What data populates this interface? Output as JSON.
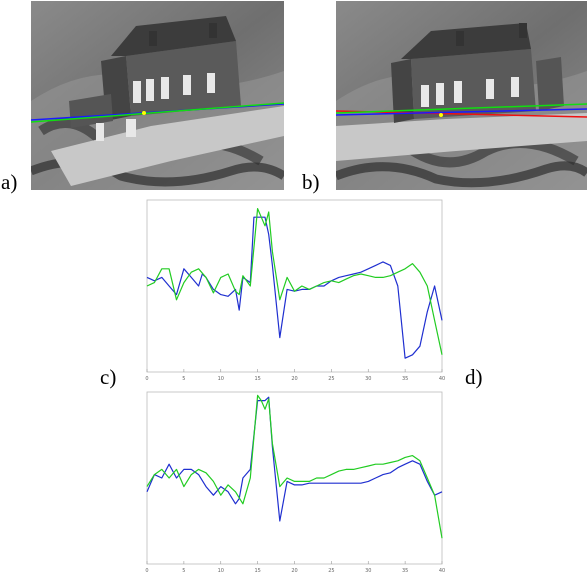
{
  "figure": {
    "panels": [
      {
        "id": "a",
        "label": "a)",
        "kind": "photo"
      },
      {
        "id": "b",
        "label": "b)",
        "kind": "photo"
      },
      {
        "id": "c",
        "label": "c)",
        "kind": "plot"
      },
      {
        "id": "d",
        "label": "d)",
        "kind": "plot"
      }
    ],
    "colors": {
      "series1": "#1f2fd0",
      "series2": "#22cc22",
      "epipolar_green": "#11dd11",
      "epipolar_blue": "#1a1aff",
      "epipolar_red": "#ee1111"
    }
  },
  "chart_data": [
    {
      "type": "line",
      "title": "",
      "xlabel": "",
      "ylabel": "",
      "xlim": [
        0,
        40
      ],
      "ylim": [
        0,
        1
      ],
      "xticks": [
        "0",
        "5",
        "10",
        "15",
        "20",
        "25",
        "30",
        "35",
        "40"
      ],
      "grid": false,
      "series": [
        {
          "color": "#1f2fd0",
          "x": [
            0,
            0.5,
            1,
            2,
            3,
            4,
            5,
            6,
            7,
            7.5,
            8,
            9,
            10,
            11,
            12,
            12.5,
            13,
            14,
            14.5,
            15,
            16,
            16.5,
            17,
            18,
            19,
            20,
            21,
            22,
            23,
            24,
            25,
            26,
            27,
            28,
            29,
            30,
            31,
            32,
            33,
            34,
            35,
            36,
            37,
            38,
            39,
            40
          ],
          "y": [
            0.55,
            0.54,
            0.53,
            0.55,
            0.5,
            0.45,
            0.6,
            0.55,
            0.5,
            0.57,
            0.55,
            0.48,
            0.45,
            0.44,
            0.48,
            0.36,
            0.55,
            0.52,
            0.9,
            0.9,
            0.9,
            0.8,
            0.62,
            0.2,
            0.48,
            0.47,
            0.48,
            0.48,
            0.5,
            0.5,
            0.53,
            0.55,
            0.56,
            0.57,
            0.58,
            0.6,
            0.62,
            0.64,
            0.62,
            0.5,
            0.08,
            0.1,
            0.15,
            0.35,
            0.5,
            0.3
          ]
        },
        {
          "color": "#22cc22",
          "x": [
            0,
            1,
            2,
            3,
            4,
            5,
            6,
            7,
            8,
            9,
            10,
            11,
            12,
            12.5,
            13,
            14,
            15,
            15.5,
            16,
            16.5,
            17,
            18,
            19,
            20,
            21,
            22,
            23,
            24,
            25,
            26,
            27,
            28,
            29,
            30,
            31,
            32,
            33,
            34,
            35,
            36,
            37,
            38,
            39,
            40
          ],
          "y": [
            0.5,
            0.52,
            0.6,
            0.6,
            0.42,
            0.52,
            0.58,
            0.6,
            0.55,
            0.46,
            0.55,
            0.57,
            0.47,
            0.45,
            0.56,
            0.5,
            0.95,
            0.9,
            0.85,
            0.93,
            0.7,
            0.42,
            0.55,
            0.47,
            0.5,
            0.48,
            0.5,
            0.52,
            0.53,
            0.52,
            0.54,
            0.56,
            0.57,
            0.56,
            0.55,
            0.55,
            0.56,
            0.58,
            0.6,
            0.63,
            0.58,
            0.5,
            0.3,
            0.1
          ]
        }
      ]
    },
    {
      "type": "line",
      "title": "",
      "xlabel": "",
      "ylabel": "",
      "xlim": [
        0,
        40
      ],
      "ylim": [
        0,
        1
      ],
      "xticks": [
        "0",
        "5",
        "10",
        "15",
        "20",
        "25",
        "30",
        "35",
        "40"
      ],
      "grid": false,
      "series": [
        {
          "color": "#1f2fd0",
          "x": [
            0,
            0.5,
            1,
            2,
            3,
            4,
            5,
            6,
            7,
            8,
            9,
            10,
            11,
            12,
            12.5,
            13,
            14,
            15,
            15.5,
            16,
            16.5,
            17,
            18,
            19,
            20,
            21,
            22,
            23,
            24,
            25,
            26,
            27,
            28,
            29,
            30,
            31,
            32,
            33,
            34,
            35,
            36,
            37,
            38,
            39,
            40
          ],
          "y": [
            0.42,
            0.47,
            0.52,
            0.5,
            0.58,
            0.5,
            0.55,
            0.55,
            0.52,
            0.45,
            0.4,
            0.45,
            0.42,
            0.35,
            0.38,
            0.5,
            0.55,
            0.95,
            0.95,
            0.95,
            0.97,
            0.68,
            0.25,
            0.48,
            0.46,
            0.46,
            0.47,
            0.47,
            0.47,
            0.47,
            0.47,
            0.47,
            0.47,
            0.47,
            0.48,
            0.5,
            0.52,
            0.53,
            0.56,
            0.58,
            0.6,
            0.58,
            0.48,
            0.4,
            0.42
          ]
        },
        {
          "color": "#22cc22",
          "x": [
            0,
            1,
            2,
            3,
            4,
            5,
            6,
            7,
            8,
            9,
            10,
            11,
            12,
            13,
            14,
            15,
            15.5,
            16,
            16.5,
            17,
            18,
            19,
            20,
            21,
            22,
            23,
            24,
            25,
            26,
            27,
            28,
            29,
            30,
            31,
            32,
            33,
            34,
            35,
            36,
            37,
            38,
            39,
            40
          ],
          "y": [
            0.45,
            0.52,
            0.55,
            0.5,
            0.55,
            0.45,
            0.52,
            0.55,
            0.53,
            0.48,
            0.4,
            0.46,
            0.42,
            0.35,
            0.5,
            0.98,
            0.95,
            0.9,
            0.96,
            0.7,
            0.45,
            0.5,
            0.48,
            0.48,
            0.48,
            0.5,
            0.5,
            0.52,
            0.54,
            0.55,
            0.55,
            0.56,
            0.57,
            0.58,
            0.58,
            0.59,
            0.6,
            0.62,
            0.63,
            0.6,
            0.5,
            0.4,
            0.15
          ]
        }
      ]
    }
  ]
}
